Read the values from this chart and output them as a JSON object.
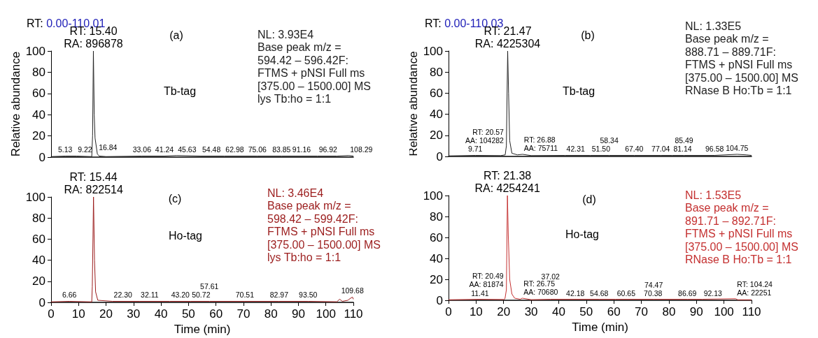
{
  "chart_data": [
    {
      "type": "line",
      "title": "RT: 0.00-110.01",
      "ylabel": "Relative abundance",
      "color": "#222222",
      "line_style": "solid",
      "marker": "none",
      "grid": false,
      "tick_labels": "y",
      "x": [
        0,
        5.13,
        9.22,
        14.8,
        15.1,
        15.4,
        15.7,
        16.0,
        16.84,
        17.5,
        20,
        33.06,
        41.24,
        45.63,
        54.48,
        62.98,
        75.06,
        83.85,
        91.16,
        96.92,
        104,
        108.29,
        110
      ],
      "values": [
        0.5,
        1,
        1,
        0.5,
        20,
        100,
        40,
        18,
        3,
        1,
        0.5,
        1,
        1,
        1.5,
        1,
        1,
        1,
        1,
        1,
        1,
        1,
        1.5,
        1
      ],
      "xlim": [
        0,
        110
      ],
      "ylim": [
        0,
        100
      ],
      "yticks": [
        0,
        20,
        40,
        60,
        80,
        100
      ],
      "annotations": [
        "(a)",
        "Tb-tag",
        "NL: 3.93E4\nBase peak m/z =\n594.42 – 596.42F:\nFTMS + pNSI Full ms\n[375.00 – 1500.00] MS\nlys Tb:ho = 1:1",
        {
          "text": "RT: 15.40\nRA: 896878",
          "x": 15.4,
          "y": 100
        },
        {
          "text": "5.13",
          "x": 5.13,
          "y": 1
        },
        {
          "text": "9.22",
          "x": 9.22,
          "y": 1
        },
        {
          "text": "16.84",
          "x": 16.84,
          "y": 3
        },
        {
          "text": "33.06",
          "x": 33.06,
          "y": 1
        },
        {
          "text": "41.24",
          "x": 41.24,
          "y": 1
        },
        {
          "text": "45.63",
          "x": 45.63,
          "y": 1.5
        },
        {
          "text": "54.48",
          "x": 54.48,
          "y": 1
        },
        {
          "text": "62.98",
          "x": 62.98,
          "y": 1
        },
        {
          "text": "75.06",
          "x": 75.06,
          "y": 1
        },
        {
          "text": "83.85",
          "x": 83.85,
          "y": 1
        },
        {
          "text": "91.16",
          "x": 91.16,
          "y": 1
        },
        {
          "text": "96.92",
          "x": 96.92,
          "y": 1
        },
        {
          "text": "108.29",
          "x": 108.29,
          "y": 1.5
        }
      ]
    },
    {
      "type": "line",
      "title": "RT: 0.00-110.03",
      "ylabel": "Relative abundance",
      "color": "#222222",
      "line_style": "solid",
      "marker": "none",
      "grid": false,
      "tick_labels": "y",
      "x": [
        0,
        9.71,
        19,
        20.57,
        21,
        21.47,
        21.8,
        22.2,
        23,
        25,
        26.88,
        30,
        42.31,
        51.5,
        58.34,
        67.4,
        77.04,
        81.14,
        85.49,
        96.58,
        104.75,
        108,
        110
      ],
      "values": [
        0.5,
        1,
        0.8,
        1.5,
        10,
        100,
        60,
        15,
        3,
        1.5,
        2,
        0.8,
        1,
        1,
        1,
        1,
        1,
        1,
        1,
        1,
        2,
        1.5,
        1
      ],
      "xlim": [
        0,
        110
      ],
      "ylim": [
        0,
        100
      ],
      "yticks": [
        0,
        20,
        40,
        60,
        80,
        100
      ],
      "annotations": [
        "(b)",
        "Tb-tag",
        "NL: 1.33E5\nBase peak m/z =\n888.71 – 889.71F:\nFTMS + pNSI Full ms\n[375.00 – 1500.00] MS\nRNase B Ho:Tb = 1:1",
        {
          "text": "RT: 21.47\nRA: 4225304",
          "x": 21.47,
          "y": 100
        },
        {
          "text": "9.71",
          "x": 9.71,
          "y": 1
        },
        {
          "text": "RT: 20.57\nAA: 104282",
          "x": 20.57,
          "y": 1.5
        },
        {
          "text": "RT: 26.88\nAA: 75711",
          "x": 26.88,
          "y": 2
        },
        {
          "text": "42.31",
          "x": 42.31,
          "y": 1
        },
        {
          "text": "51.50",
          "x": 51.5,
          "y": 1
        },
        {
          "text": "58.34",
          "x": 58.34,
          "y": 1
        },
        {
          "text": "67.40",
          "x": 67.4,
          "y": 1
        },
        {
          "text": "77.04",
          "x": 77.04,
          "y": 1
        },
        {
          "text": "81.14",
          "x": 81.14,
          "y": 1
        },
        {
          "text": "85.49",
          "x": 85.49,
          "y": 1
        },
        {
          "text": "96.58",
          "x": 96.58,
          "y": 1
        },
        {
          "text": "104.75",
          "x": 104.75,
          "y": 2
        }
      ]
    },
    {
      "type": "line",
      "xlabel": "Time (min)",
      "color": "#9b1c1c",
      "line_style": "solid",
      "marker": "none",
      "grid": false,
      "x": [
        0,
        6.66,
        14.8,
        15.0,
        15.44,
        15.8,
        16.2,
        17,
        22.3,
        32.11,
        43.2,
        50.72,
        57.61,
        70.51,
        82.97,
        93.5,
        104,
        105,
        106,
        108,
        109,
        109.68,
        110
      ],
      "values": [
        0.5,
        1,
        0.5,
        15,
        100,
        40,
        10,
        2,
        1,
        1,
        1,
        1,
        1,
        1,
        1,
        1,
        0.6,
        3,
        1,
        2,
        4,
        5,
        3
      ],
      "xlim": [
        0,
        110
      ],
      "xticks": [
        0,
        10,
        20,
        30,
        40,
        50,
        60,
        70,
        80,
        90,
        100,
        110
      ],
      "ylim": [
        0,
        100
      ],
      "yticks": [
        0,
        20,
        40,
        60,
        80,
        100
      ],
      "annotations": [
        "(c)",
        "Ho-tag",
        "NL: 3.46E4\nBase peak m/z =\n598.42 – 599.42F:\nFTMS + pNSI Full ms\n[375.00 – 1500.00] MS\nlys Tb:ho = 1:1",
        {
          "text": "RT: 15.44\nRA: 822514",
          "x": 15.44,
          "y": 100
        },
        {
          "text": "6.66",
          "x": 6.66,
          "y": 1
        },
        {
          "text": "22.30",
          "x": 22.3,
          "y": 1
        },
        {
          "text": "32.11",
          "x": 32.11,
          "y": 1
        },
        {
          "text": "43.20",
          "x": 43.2,
          "y": 1
        },
        {
          "text": "50.72",
          "x": 50.72,
          "y": 1
        },
        {
          "text": "57.61",
          "x": 57.61,
          "y": 1
        },
        {
          "text": "70.51",
          "x": 70.51,
          "y": 1
        },
        {
          "text": "82.97",
          "x": 82.97,
          "y": 1
        },
        {
          "text": "93.50",
          "x": 93.5,
          "y": 1
        },
        {
          "text": "109.68",
          "x": 109.68,
          "y": 5
        }
      ]
    },
    {
      "type": "line",
      "xlabel": "Time (min)",
      "color": "#c43030",
      "line_style": "solid",
      "marker": "none",
      "grid": false,
      "x": [
        0,
        11.41,
        20,
        20.49,
        21,
        21.38,
        21.7,
        22.2,
        23,
        24,
        26,
        26.75,
        30,
        37.02,
        42.18,
        54.68,
        60.65,
        70.38,
        74.47,
        86.69,
        92.13,
        104.24,
        105,
        110
      ],
      "values": [
        0.5,
        1,
        0.8,
        1.5,
        10,
        100,
        62,
        20,
        6,
        2,
        1,
        2,
        0.6,
        1,
        1,
        1,
        1,
        1,
        1,
        1,
        1,
        1.5,
        0.5,
        0.5
      ],
      "xlim": [
        0,
        110
      ],
      "xticks": [
        0,
        10,
        20,
        30,
        40,
        50,
        60,
        70,
        80,
        90,
        100,
        110
      ],
      "ylim": [
        0,
        100
      ],
      "yticks": [
        0,
        20,
        40,
        60,
        80,
        100
      ],
      "annotations": [
        "(d)",
        "Ho-tag",
        "NL: 1.53E5\nBase peak m/z =\n891.71 – 892.71F:\nFTMS + pNSI Full ms\n[375.00 – 1500.00] MS\nRNase B Ho:Tb = 1:1",
        {
          "text": "RT: 21.38\nRA: 4254241",
          "x": 21.38,
          "y": 100
        },
        {
          "text": "11.41",
          "x": 11.41,
          "y": 1
        },
        {
          "text": "RT: 20.49\nAA: 81874",
          "x": 20.49,
          "y": 1.5
        },
        {
          "text": "RT: 26.75\nAA: 70680",
          "x": 26.75,
          "y": 2
        },
        {
          "text": "37.02",
          "x": 37.02,
          "y": 1
        },
        {
          "text": "42.18",
          "x": 42.18,
          "y": 1
        },
        {
          "text": "54.68",
          "x": 54.68,
          "y": 1
        },
        {
          "text": "60.65",
          "x": 60.65,
          "y": 1
        },
        {
          "text": "70.38",
          "x": 70.38,
          "y": 1
        },
        {
          "text": "74.47",
          "x": 74.47,
          "y": 1
        },
        {
          "text": "86.69",
          "x": 86.69,
          "y": 1
        },
        {
          "text": "92.13",
          "x": 92.13,
          "y": 1
        },
        {
          "text": "RT: 104.24\nAA: 22251",
          "x": 104.24,
          "y": 1.5
        }
      ]
    }
  ]
}
